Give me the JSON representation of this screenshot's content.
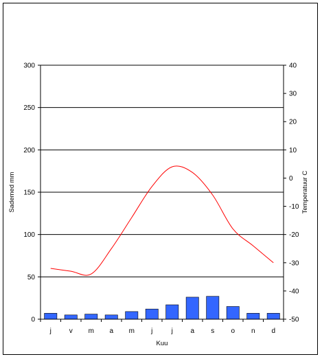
{
  "chart_data": {
    "type": "bar",
    "categories": [
      "j",
      "v",
      "m",
      "a",
      "m",
      "j",
      "j",
      "a",
      "s",
      "o",
      "n",
      "d"
    ],
    "xlabel": "Kuu",
    "ylabel": "Sademed mm",
    "y2label": "Temperatuur C",
    "ylim": [
      0,
      300
    ],
    "y2lim": [
      -50,
      40
    ],
    "yticks": [
      "0",
      "50",
      "100",
      "150",
      "200",
      "250",
      "300"
    ],
    "y2ticks": [
      "-50",
      "-40",
      "-30",
      "-20",
      "-10",
      "0",
      "10",
      "20",
      "30",
      "40"
    ],
    "grid": "horizontal",
    "series": [
      {
        "kind": "bar",
        "axis": "left",
        "color": "#3366ff",
        "values": [
          7,
          5,
          6,
          5,
          9,
          12,
          17,
          26,
          27,
          15,
          7,
          7
        ]
      },
      {
        "kind": "line",
        "axis": "right",
        "color": "#ff0000",
        "values": [
          -32,
          -33,
          -34,
          -25,
          -14,
          -3,
          4,
          2,
          -6,
          -18,
          -24,
          -30
        ]
      }
    ]
  }
}
